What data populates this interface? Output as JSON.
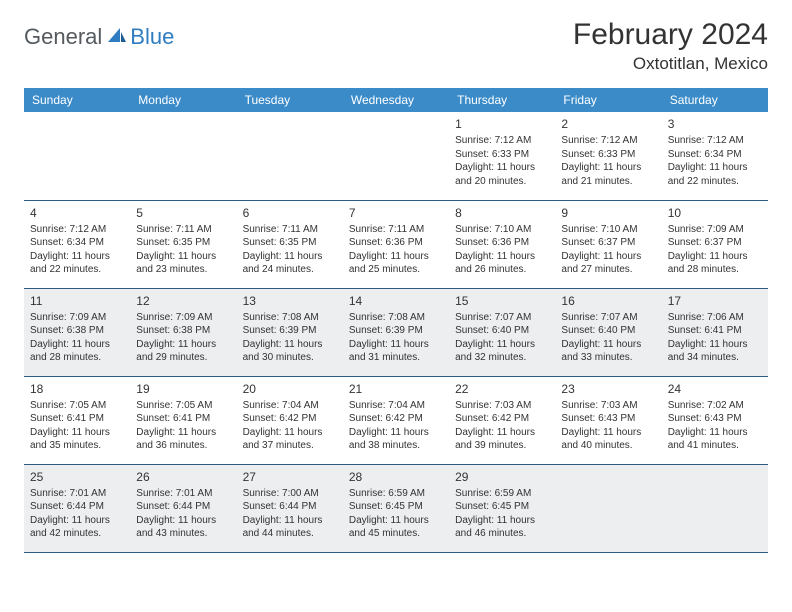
{
  "brand": {
    "text1": "General",
    "text2": "Blue"
  },
  "title": "February 2024",
  "location": "Oxtotitlan, Mexico",
  "dayHeaders": [
    "Sunday",
    "Monday",
    "Tuesday",
    "Wednesday",
    "Thursday",
    "Friday",
    "Saturday"
  ],
  "colors": {
    "headerBg": "#3b8bc9",
    "headerText": "#ffffff",
    "rowAlt": "#eceeef",
    "borderBottom": "#2c5a82",
    "logoGray": "#555a5f",
    "logoBlue": "#2f7dc0"
  },
  "weeks": [
    [
      null,
      null,
      null,
      null,
      {
        "n": "1",
        "sr": "7:12 AM",
        "ss": "6:33 PM",
        "dl": "11 hours and 20 minutes."
      },
      {
        "n": "2",
        "sr": "7:12 AM",
        "ss": "6:33 PM",
        "dl": "11 hours and 21 minutes."
      },
      {
        "n": "3",
        "sr": "7:12 AM",
        "ss": "6:34 PM",
        "dl": "11 hours and 22 minutes."
      }
    ],
    [
      {
        "n": "4",
        "sr": "7:12 AM",
        "ss": "6:34 PM",
        "dl": "11 hours and 22 minutes."
      },
      {
        "n": "5",
        "sr": "7:11 AM",
        "ss": "6:35 PM",
        "dl": "11 hours and 23 minutes."
      },
      {
        "n": "6",
        "sr": "7:11 AM",
        "ss": "6:35 PM",
        "dl": "11 hours and 24 minutes."
      },
      {
        "n": "7",
        "sr": "7:11 AM",
        "ss": "6:36 PM",
        "dl": "11 hours and 25 minutes."
      },
      {
        "n": "8",
        "sr": "7:10 AM",
        "ss": "6:36 PM",
        "dl": "11 hours and 26 minutes."
      },
      {
        "n": "9",
        "sr": "7:10 AM",
        "ss": "6:37 PM",
        "dl": "11 hours and 27 minutes."
      },
      {
        "n": "10",
        "sr": "7:09 AM",
        "ss": "6:37 PM",
        "dl": "11 hours and 28 minutes."
      }
    ],
    [
      {
        "n": "11",
        "sr": "7:09 AM",
        "ss": "6:38 PM",
        "dl": "11 hours and 28 minutes."
      },
      {
        "n": "12",
        "sr": "7:09 AM",
        "ss": "6:38 PM",
        "dl": "11 hours and 29 minutes."
      },
      {
        "n": "13",
        "sr": "7:08 AM",
        "ss": "6:39 PM",
        "dl": "11 hours and 30 minutes."
      },
      {
        "n": "14",
        "sr": "7:08 AM",
        "ss": "6:39 PM",
        "dl": "11 hours and 31 minutes."
      },
      {
        "n": "15",
        "sr": "7:07 AM",
        "ss": "6:40 PM",
        "dl": "11 hours and 32 minutes."
      },
      {
        "n": "16",
        "sr": "7:07 AM",
        "ss": "6:40 PM",
        "dl": "11 hours and 33 minutes."
      },
      {
        "n": "17",
        "sr": "7:06 AM",
        "ss": "6:41 PM",
        "dl": "11 hours and 34 minutes."
      }
    ],
    [
      {
        "n": "18",
        "sr": "7:05 AM",
        "ss": "6:41 PM",
        "dl": "11 hours and 35 minutes."
      },
      {
        "n": "19",
        "sr": "7:05 AM",
        "ss": "6:41 PM",
        "dl": "11 hours and 36 minutes."
      },
      {
        "n": "20",
        "sr": "7:04 AM",
        "ss": "6:42 PM",
        "dl": "11 hours and 37 minutes."
      },
      {
        "n": "21",
        "sr": "7:04 AM",
        "ss": "6:42 PM",
        "dl": "11 hours and 38 minutes."
      },
      {
        "n": "22",
        "sr": "7:03 AM",
        "ss": "6:42 PM",
        "dl": "11 hours and 39 minutes."
      },
      {
        "n": "23",
        "sr": "7:03 AM",
        "ss": "6:43 PM",
        "dl": "11 hours and 40 minutes."
      },
      {
        "n": "24",
        "sr": "7:02 AM",
        "ss": "6:43 PM",
        "dl": "11 hours and 41 minutes."
      }
    ],
    [
      {
        "n": "25",
        "sr": "7:01 AM",
        "ss": "6:44 PM",
        "dl": "11 hours and 42 minutes."
      },
      {
        "n": "26",
        "sr": "7:01 AM",
        "ss": "6:44 PM",
        "dl": "11 hours and 43 minutes."
      },
      {
        "n": "27",
        "sr": "7:00 AM",
        "ss": "6:44 PM",
        "dl": "11 hours and 44 minutes."
      },
      {
        "n": "28",
        "sr": "6:59 AM",
        "ss": "6:45 PM",
        "dl": "11 hours and 45 minutes."
      },
      {
        "n": "29",
        "sr": "6:59 AM",
        "ss": "6:45 PM",
        "dl": "11 hours and 46 minutes."
      },
      null,
      null
    ]
  ],
  "labels": {
    "sunrise": "Sunrise:",
    "sunset": "Sunset:",
    "daylight": "Daylight:"
  }
}
